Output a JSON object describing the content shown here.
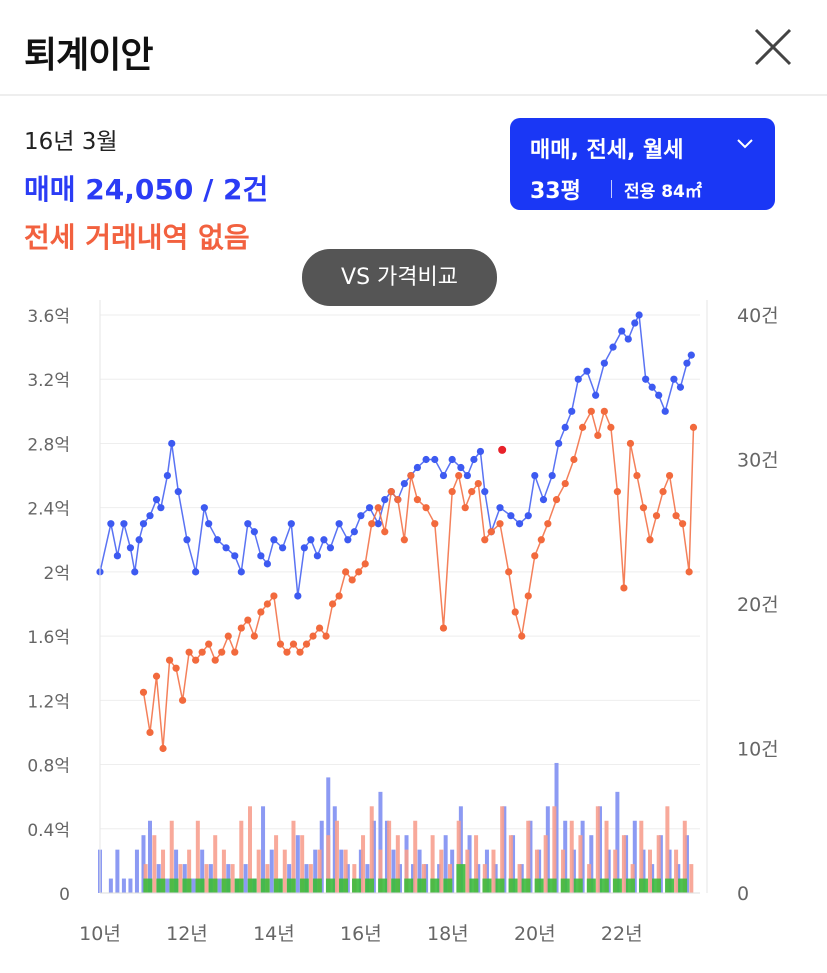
{
  "header": {
    "title": "퇴계이안"
  },
  "info": {
    "date": "16년 3월",
    "sale": "매매 24,050 / 2건",
    "jeonse": "전세 거래내역 없음"
  },
  "filter": {
    "types": "매매, 전세, 월세",
    "size": "33평",
    "area": "전용 84㎡"
  },
  "vs_button": "VS 가격비교",
  "colors": {
    "sale": "#3d5af1",
    "jeonse": "#f26a3d",
    "sale_bar": "#7f8ff2",
    "jeonse_bar": "#f7a08f",
    "monthly_bar": "#3dbb3d",
    "filter_bg": "#1a37f5",
    "highlight": "#e8222a"
  },
  "chart_data": {
    "type": "line",
    "x_ticks": [
      "10년",
      "12년",
      "14년",
      "16년",
      "18년",
      "20년",
      "22년"
    ],
    "y_left_ticks": [
      "0",
      "0.4억",
      "0.8억",
      "1.2억",
      "1.6억",
      "2억",
      "2.4억",
      "2.8억",
      "3.2억",
      "3.6억"
    ],
    "y_right_ticks": [
      "0",
      "10건",
      "20건",
      "30건",
      "40건"
    ],
    "y_left_range": [
      0,
      3.6
    ],
    "y_right_range": [
      0,
      40
    ],
    "x_range": [
      2010,
      2023.8
    ],
    "selected": {
      "x": 2019.25,
      "y": 2.76
    },
    "series": [
      {
        "key": "sale",
        "x": [
          2010.0,
          2010.25,
          2010.4,
          2010.55,
          2010.7,
          2010.8,
          2010.9,
          2011.0,
          2011.15,
          2011.3,
          2011.4,
          2011.55,
          2011.65,
          2011.8,
          2012.0,
          2012.2,
          2012.4,
          2012.5,
          2012.7,
          2012.9,
          2013.1,
          2013.25,
          2013.4,
          2013.55,
          2013.7,
          2013.85,
          2014.0,
          2014.2,
          2014.4,
          2014.55,
          2014.7,
          2014.85,
          2015.0,
          2015.15,
          2015.3,
          2015.5,
          2015.7,
          2015.85,
          2016.0,
          2016.2,
          2016.4,
          2016.55,
          2016.7,
          2016.85,
          2017.0,
          2017.15,
          2017.3,
          2017.5,
          2017.7,
          2017.9,
          2018.1,
          2018.3,
          2018.45,
          2018.6,
          2018.75,
          2018.85,
          2019.0,
          2019.2,
          2019.45,
          2019.65,
          2019.85,
          2020.0,
          2020.2,
          2020.4,
          2020.55,
          2020.7,
          2020.85,
          2021.0,
          2021.2,
          2021.4,
          2021.6,
          2021.8,
          2022.0,
          2022.15,
          2022.3,
          2022.4,
          2022.55,
          2022.7,
          2022.85,
          2023.0,
          2023.2,
          2023.35,
          2023.5,
          2023.6
        ],
        "values": [
          2.0,
          2.3,
          2.1,
          2.3,
          2.15,
          2.0,
          2.2,
          2.3,
          2.35,
          2.45,
          2.4,
          2.6,
          2.8,
          2.5,
          2.2,
          2.0,
          2.4,
          2.3,
          2.2,
          2.15,
          2.1,
          2.0,
          2.3,
          2.25,
          2.1,
          2.05,
          2.2,
          2.15,
          2.3,
          1.85,
          2.15,
          2.2,
          2.1,
          2.2,
          2.15,
          2.3,
          2.2,
          2.25,
          2.35,
          2.4,
          2.3,
          2.45,
          2.5,
          2.45,
          2.55,
          2.6,
          2.65,
          2.7,
          2.7,
          2.6,
          2.7,
          2.65,
          2.6,
          2.7,
          2.75,
          2.5,
          2.25,
          2.4,
          2.35,
          2.3,
          2.35,
          2.6,
          2.45,
          2.6,
          2.8,
          2.9,
          3.0,
          3.2,
          3.25,
          3.1,
          3.3,
          3.4,
          3.5,
          3.45,
          3.55,
          3.6,
          3.2,
          3.15,
          3.1,
          3.0,
          3.2,
          3.15,
          3.3,
          3.35
        ]
      },
      {
        "key": "jeonse",
        "x": [
          2011.0,
          2011.15,
          2011.3,
          2011.45,
          2011.6,
          2011.75,
          2011.9,
          2012.05,
          2012.2,
          2012.35,
          2012.5,
          2012.65,
          2012.8,
          2012.95,
          2013.1,
          2013.25,
          2013.4,
          2013.55,
          2013.7,
          2013.85,
          2014.0,
          2014.15,
          2014.3,
          2014.45,
          2014.6,
          2014.75,
          2014.9,
          2015.05,
          2015.2,
          2015.35,
          2015.5,
          2015.65,
          2015.8,
          2015.95,
          2016.1,
          2016.25,
          2016.4,
          2016.55,
          2016.7,
          2016.85,
          2017.0,
          2017.15,
          2017.3,
          2017.5,
          2017.7,
          2017.9,
          2018.1,
          2018.25,
          2018.4,
          2018.55,
          2018.7,
          2018.85,
          2019.0,
          2019.2,
          2019.4,
          2019.55,
          2019.7,
          2019.85,
          2020.0,
          2020.15,
          2020.3,
          2020.5,
          2020.7,
          2020.9,
          2021.1,
          2021.3,
          2021.45,
          2021.6,
          2021.75,
          2021.9,
          2022.05,
          2022.2,
          2022.35,
          2022.5,
          2022.65,
          2022.8,
          2022.95,
          2023.1,
          2023.25,
          2023.4,
          2023.55,
          2023.65
        ],
        "values": [
          1.25,
          1.0,
          1.35,
          0.9,
          1.45,
          1.4,
          1.2,
          1.5,
          1.45,
          1.5,
          1.55,
          1.45,
          1.5,
          1.6,
          1.5,
          1.65,
          1.7,
          1.6,
          1.75,
          1.8,
          1.85,
          1.55,
          1.5,
          1.55,
          1.5,
          1.55,
          1.6,
          1.65,
          1.6,
          1.8,
          1.85,
          2.0,
          1.95,
          2.0,
          2.05,
          2.3,
          2.4,
          2.25,
          2.5,
          2.45,
          2.2,
          2.6,
          2.45,
          2.4,
          2.3,
          1.65,
          2.5,
          2.6,
          2.4,
          2.5,
          2.55,
          2.2,
          2.25,
          2.3,
          2.0,
          1.75,
          1.6,
          1.85,
          2.1,
          2.2,
          2.3,
          2.45,
          2.55,
          2.7,
          2.9,
          3.0,
          2.85,
          3.0,
          2.9,
          2.5,
          1.9,
          2.8,
          2.6,
          2.4,
          2.2,
          2.35,
          2.5,
          2.6,
          2.35,
          2.3,
          2.0,
          2.9
        ]
      }
    ],
    "volume_series": [
      {
        "key": "sale_bar",
        "x": [
          2010.0,
          2010.25,
          2010.4,
          2010.55,
          2010.7,
          2010.85,
          2011.0,
          2011.15,
          2011.35,
          2011.55,
          2011.75,
          2011.95,
          2012.15,
          2012.35,
          2012.55,
          2012.75,
          2012.95,
          2013.15,
          2013.35,
          2013.55,
          2013.75,
          2013.95,
          2014.15,
          2014.35,
          2014.55,
          2014.75,
          2014.95,
          2015.1,
          2015.25,
          2015.4,
          2015.55,
          2015.7,
          2015.85,
          2016.0,
          2016.15,
          2016.3,
          2016.45,
          2016.6,
          2016.75,
          2016.9,
          2017.05,
          2017.2,
          2017.35,
          2017.5,
          2017.65,
          2017.8,
          2017.95,
          2018.1,
          2018.3,
          2018.5,
          2018.7,
          2018.9,
          2019.1,
          2019.3,
          2019.5,
          2019.7,
          2019.9,
          2020.1,
          2020.3,
          2020.5,
          2020.7,
          2020.9,
          2021.1,
          2021.3,
          2021.5,
          2021.7,
          2021.9,
          2022.1,
          2022.3,
          2022.5,
          2022.7,
          2022.9,
          2023.1,
          2023.3,
          2023.5
        ],
        "values": [
          3,
          1,
          3,
          1,
          1,
          3,
          4,
          5,
          2,
          1,
          3,
          2,
          1,
          3,
          2,
          1,
          2,
          1,
          2,
          1,
          6,
          3,
          1,
          2,
          4,
          2,
          3,
          5,
          8,
          6,
          3,
          2,
          1,
          3,
          2,
          5,
          7,
          5,
          3,
          2,
          4,
          2,
          3,
          2,
          1,
          2,
          4,
          3,
          6,
          4,
          2,
          3,
          2,
          6,
          4,
          2,
          5,
          3,
          6,
          9,
          5,
          3,
          5,
          4,
          6,
          3,
          7,
          4,
          5,
          3,
          2,
          4,
          3,
          2,
          4
        ]
      },
      {
        "key": "jeonse_bar",
        "x": [
          2011.05,
          2011.25,
          2011.45,
          2011.65,
          2011.85,
          2012.05,
          2012.25,
          2012.45,
          2012.65,
          2012.85,
          2013.05,
          2013.25,
          2013.45,
          2013.65,
          2013.85,
          2014.05,
          2014.25,
          2014.45,
          2014.65,
          2014.85,
          2015.05,
          2015.25,
          2015.45,
          2015.65,
          2015.85,
          2016.05,
          2016.25,
          2016.45,
          2016.65,
          2016.85,
          2017.05,
          2017.25,
          2017.45,
          2017.65,
          2017.85,
          2018.05,
          2018.25,
          2018.45,
          2018.65,
          2018.85,
          2019.05,
          2019.25,
          2019.45,
          2019.65,
          2019.85,
          2020.05,
          2020.25,
          2020.45,
          2020.65,
          2020.85,
          2021.05,
          2021.25,
          2021.45,
          2021.65,
          2021.85,
          2022.05,
          2022.25,
          2022.45,
          2022.65,
          2022.85,
          2023.05,
          2023.25,
          2023.45,
          2023.6
        ],
        "values": [
          2,
          4,
          3,
          5,
          2,
          3,
          5,
          2,
          4,
          3,
          2,
          5,
          6,
          3,
          2,
          4,
          3,
          5,
          4,
          2,
          3,
          4,
          5,
          3,
          2,
          4,
          6,
          3,
          5,
          4,
          3,
          5,
          2,
          4,
          3,
          2,
          5,
          3,
          4,
          2,
          3,
          6,
          4,
          2,
          5,
          3,
          4,
          6,
          3,
          5,
          4,
          2,
          6,
          5,
          3,
          4,
          2,
          5,
          3,
          4,
          6,
          3,
          5,
          2
        ]
      },
      {
        "key": "monthly_bar",
        "x": [
          2011.1,
          2011.4,
          2011.7,
          2012.0,
          2012.3,
          2012.6,
          2012.9,
          2013.2,
          2013.5,
          2013.8,
          2014.1,
          2014.4,
          2014.7,
          2015.0,
          2015.3,
          2015.6,
          2015.9,
          2016.2,
          2016.5,
          2016.8,
          2017.1,
          2017.4,
          2017.7,
          2018.0,
          2018.3,
          2018.6,
          2018.9,
          2019.2,
          2019.5,
          2019.8,
          2020.1,
          2020.4,
          2020.7,
          2021.0,
          2021.3,
          2021.6,
          2021.9,
          2022.2,
          2022.5,
          2022.8,
          2023.1,
          2023.4
        ],
        "values": [
          1,
          1,
          1,
          1,
          1,
          1,
          1,
          1,
          1,
          1,
          1,
          1,
          1,
          1,
          1,
          1,
          1,
          1,
          1,
          1,
          1,
          1,
          1,
          1,
          2,
          1,
          1,
          1,
          1,
          1,
          1,
          1,
          1,
          1,
          1,
          1,
          1,
          1,
          1,
          1,
          1,
          1
        ]
      }
    ]
  }
}
